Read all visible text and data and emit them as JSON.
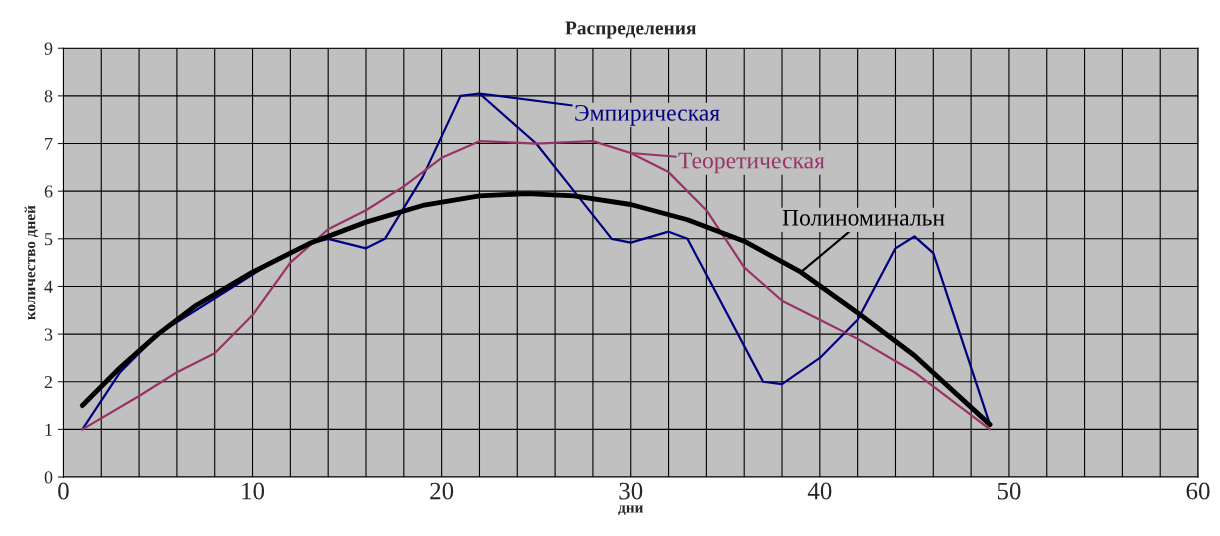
{
  "chart_data": {
    "type": "line",
    "title": "Распределения",
    "xlabel": "дни",
    "ylabel": "количество дней",
    "xlim": [
      0,
      60
    ],
    "ylim": [
      0,
      9
    ],
    "xticks": [
      0,
      {
        "value": 2,
        "label": null
      },
      {
        "value": 4,
        "label": null
      },
      {
        "value": 6,
        "label": null
      },
      {
        "value": 8,
        "label": null
      },
      10,
      {
        "value": 12,
        "label": null
      },
      {
        "value": 14,
        "label": null
      },
      {
        "value": 16,
        "label": null
      },
      {
        "value": 18,
        "label": null
      },
      20,
      {
        "value": 22,
        "label": null
      },
      {
        "value": 24,
        "label": null
      },
      {
        "value": 26,
        "label": null
      },
      {
        "value": 28,
        "label": null
      },
      30,
      {
        "value": 32,
        "label": null
      },
      {
        "value": 34,
        "label": null
      },
      {
        "value": 36,
        "label": null
      },
      {
        "value": 38,
        "label": null
      },
      40,
      {
        "value": 42,
        "label": null
      },
      {
        "value": 44,
        "label": null
      },
      {
        "value": 46,
        "label": null
      },
      {
        "value": 48,
        "label": null
      },
      50,
      {
        "value": 52,
        "label": null
      },
      {
        "value": 54,
        "label": null
      },
      {
        "value": 56,
        "label": null
      },
      {
        "value": 58,
        "label": null
      },
      60
    ],
    "yticks": [
      0,
      1,
      2,
      3,
      4,
      5,
      6,
      7,
      8,
      9
    ],
    "grid": true,
    "legend": "top right",
    "series": [
      {
        "name": "Эмпирическая",
        "color": "#000080",
        "x": [
          1,
          3,
          5,
          7,
          9,
          11,
          13,
          14,
          16,
          17,
          19,
          21,
          22,
          25,
          27,
          29,
          30,
          32,
          33,
          35,
          37,
          38,
          40,
          42,
          44,
          45,
          46,
          48,
          49
        ],
        "values": [
          1,
          2.2,
          3,
          3.5,
          4,
          4.5,
          4.9,
          5.0,
          4.8,
          5.0,
          6.3,
          8.0,
          8.05,
          7,
          6,
          5,
          4.92,
          5.15,
          5.0,
          3.5,
          2.0,
          1.95,
          2.5,
          3.3,
          4.8,
          5.05,
          4.7,
          2.3,
          1.1
        ]
      },
      {
        "name": "Теоретическая",
        "color": "#993366",
        "x": [
          1,
          4,
          6,
          8,
          10,
          12,
          14,
          16,
          18,
          20,
          22,
          25,
          28,
          30,
          32,
          34,
          36,
          38,
          40,
          42,
          45,
          49
        ],
        "values": [
          1,
          1.7,
          2.2,
          2.6,
          3.4,
          4.5,
          5.2,
          5.6,
          6.1,
          6.7,
          7.05,
          7.0,
          7.05,
          6.8,
          6.4,
          5.6,
          4.4,
          3.7,
          3.3,
          2.9,
          2.2,
          1.0
        ]
      },
      {
        "name": "Полиноминальн",
        "color": "#000000",
        "x": [
          1,
          3,
          5,
          7,
          10,
          13,
          16,
          19,
          22,
          24.5,
          27,
          30,
          33,
          36,
          39,
          42,
          45,
          49
        ],
        "values": [
          1.5,
          2.3,
          3.0,
          3.6,
          4.3,
          4.9,
          5.35,
          5.7,
          5.9,
          5.95,
          5.9,
          5.72,
          5.4,
          4.95,
          4.3,
          3.45,
          2.55,
          1.1
        ]
      }
    ]
  }
}
